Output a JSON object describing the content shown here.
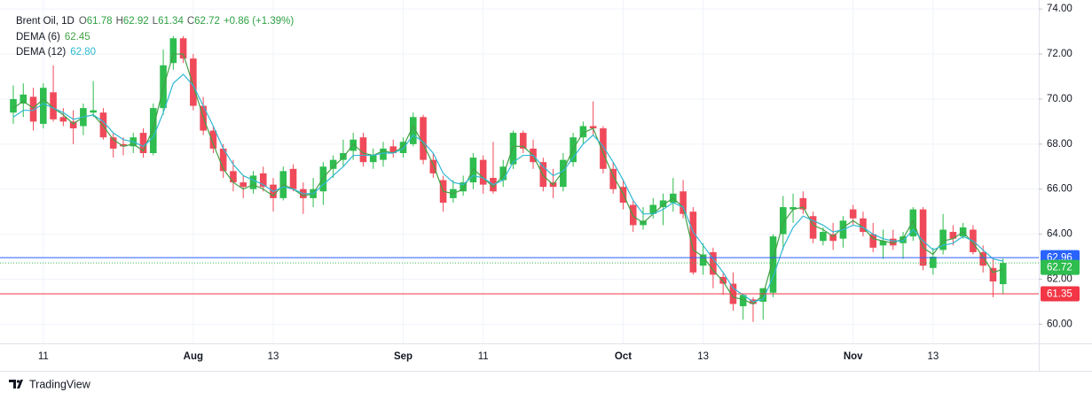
{
  "chart_data": {
    "type": "candlestick",
    "symbol": "Brent Oil, 1D",
    "ohlc_letters": [
      "O",
      "H",
      "L",
      "C"
    ],
    "change_label": "+0.86 (+1.39%)",
    "brand": "TradingView",
    "up_color": "#2ebd4e",
    "down_color": "#f04a5a",
    "grid": true,
    "categories": [
      null,
      null,
      null,
      "11",
      null,
      null,
      null,
      null,
      null,
      null,
      null,
      null,
      null,
      null,
      null,
      null,
      null,
      null,
      "Aug",
      null,
      null,
      null,
      null,
      null,
      null,
      null,
      "13",
      null,
      null,
      null,
      null,
      null,
      null,
      null,
      null,
      null,
      null,
      null,
      null,
      "Sep",
      null,
      null,
      null,
      null,
      null,
      null,
      null,
      "11",
      null,
      null,
      null,
      null,
      null,
      null,
      null,
      null,
      null,
      null,
      null,
      null,
      null,
      "Oct",
      null,
      null,
      null,
      null,
      null,
      null,
      null,
      "13",
      null,
      null,
      null,
      null,
      null,
      null,
      null,
      null,
      null,
      null,
      null,
      null,
      null,
      null,
      "Nov",
      null,
      null,
      null,
      null,
      null,
      null,
      null,
      "13",
      null,
      null,
      null,
      null,
      null,
      null,
      null
    ],
    "open": [
      69.4,
      69.8,
      70.1,
      68.9,
      70.3,
      69.2,
      69.0,
      68.8,
      69.4,
      69.4,
      68.3,
      68.0,
      67.9,
      68.5,
      67.6,
      69.6,
      71.6,
      72.7,
      71.8,
      69.7,
      68.6,
      67.8,
      66.8,
      66.3,
      66.0,
      66.7,
      66.2,
      65.6,
      66.9,
      66.0,
      65.6,
      65.9,
      66.9,
      67.3,
      67.7,
      68.3,
      67.2,
      67.3,
      67.9,
      67.6,
      68.0,
      69.2,
      67.3,
      66.4,
      65.6,
      65.9,
      66.3,
      67.3,
      66.5,
      66.4,
      67.1,
      68.5,
      67.8,
      67.2,
      66.3,
      66.1,
      67.2,
      68.3,
      68.8,
      68.7,
      66.9,
      66.1,
      65.3,
      64.4,
      64.9,
      65.2,
      65.4,
      65.9,
      65.0,
      62.6,
      63.2,
      62.1,
      61.8,
      60.8,
      61.1,
      61.0,
      61.4,
      64.0,
      65.1,
      65.6,
      64.8,
      63.7,
      64.0,
      63.8,
      65.1,
      64.7,
      64.0,
      63.5,
      63.8,
      63.6,
      63.9,
      65.1,
      62.5,
      63.3,
      64.1,
      63.9,
      64.2,
      63.2,
      62.5,
      61.78
    ],
    "high": [
      70.6,
      70.7,
      70.5,
      70.7,
      71.5,
      69.6,
      69.5,
      69.8,
      70.8,
      69.6,
      68.5,
      68.3,
      68.5,
      68.7,
      69.8,
      72.2,
      72.8,
      72.8,
      72.0,
      70.1,
      68.8,
      68.0,
      67.3,
      66.6,
      66.8,
      67.0,
      66.5,
      67.0,
      67.1,
      66.3,
      66.5,
      67.2,
      67.5,
      68.2,
      68.5,
      68.5,
      67.8,
      68.1,
      68.2,
      68.3,
      69.4,
      69.3,
      67.6,
      66.6,
      66.4,
      66.6,
      67.6,
      67.5,
      68.1,
      67.3,
      68.6,
      68.6,
      68.2,
      67.4,
      66.9,
      67.6,
      68.5,
      69.0,
      69.9,
      68.8,
      67.2,
      66.4,
      65.5,
      65.2,
      65.6,
      65.8,
      66.5,
      66.4,
      65.2,
      63.6,
      63.4,
      62.3,
      62.3,
      61.3,
      61.2,
      61.6,
      64.0,
      65.7,
      65.8,
      65.9,
      65.0,
      64.3,
      64.5,
      64.8,
      65.3,
      65.0,
      64.5,
      64.2,
      64.2,
      64.1,
      65.2,
      65.2,
      63.4,
      64.9,
      64.4,
      64.5,
      64.4,
      63.5,
      62.9,
      62.92
    ],
    "low": [
      68.9,
      69.2,
      68.6,
      68.7,
      69.0,
      68.8,
      68.0,
      68.4,
      69.2,
      68.2,
      67.4,
      67.5,
      67.6,
      67.4,
      67.5,
      69.3,
      71.3,
      71.6,
      69.5,
      68.4,
      67.6,
      66.5,
      65.9,
      65.6,
      65.8,
      65.9,
      65.0,
      65.5,
      65.9,
      64.9,
      65.2,
      65.3,
      66.5,
      67.0,
      67.3,
      67.0,
      66.9,
      67.0,
      67.4,
      67.4,
      67.9,
      67.1,
      66.5,
      65.0,
      65.4,
      65.7,
      66.0,
      65.8,
      65.8,
      66.1,
      66.9,
      67.6,
      66.9,
      65.9,
      65.6,
      65.9,
      67.0,
      68.0,
      68.4,
      66.7,
      65.8,
      65.1,
      64.1,
      64.2,
      64.7,
      64.4,
      65.0,
      64.7,
      62.2,
      62.2,
      61.6,
      61.3,
      60.6,
      60.2,
      60.1,
      60.2,
      61.2,
      63.3,
      64.5,
      64.9,
      63.6,
      63.5,
      63.3,
      63.4,
      64.4,
      63.9,
      63.2,
      62.9,
      63.3,
      62.9,
      63.7,
      62.4,
      62.2,
      63.1,
      63.5,
      63.8,
      63.1,
      62.3,
      61.2,
      61.34
    ],
    "close": [
      70.0,
      70.2,
      69.0,
      70.5,
      69.1,
      69.0,
      68.7,
      69.6,
      69.5,
      68.3,
      67.8,
      67.9,
      68.3,
      67.6,
      69.6,
      71.5,
      72.7,
      71.8,
      69.7,
      68.6,
      67.8,
      66.8,
      66.3,
      66.1,
      66.6,
      66.1,
      65.6,
      66.8,
      66.0,
      65.6,
      66.0,
      67.0,
      67.3,
      67.6,
      68.2,
      67.2,
      67.5,
      67.8,
      67.6,
      68.1,
      69.2,
      67.3,
      66.7,
      65.4,
      66.0,
      66.3,
      67.4,
      66.2,
      65.9,
      67.0,
      68.5,
      67.8,
      67.2,
      66.1,
      66.1,
      67.3,
      68.3,
      68.8,
      68.7,
      66.9,
      66.0,
      65.4,
      64.4,
      64.6,
      65.3,
      65.5,
      65.8,
      64.9,
      62.3,
      63.1,
      62.2,
      61.8,
      60.9,
      61.3,
      60.9,
      61.6,
      63.9,
      65.2,
      65.2,
      65.1,
      63.8,
      64.1,
      63.7,
      64.6,
      64.7,
      64.1,
      63.4,
      63.7,
      63.5,
      63.9,
      65.1,
      62.6,
      63.0,
      64.2,
      63.8,
      64.3,
      63.2,
      62.6,
      61.9,
      62.72
    ],
    "series": [
      {
        "name": "DEMA (6)",
        "color": "#43a047",
        "value_label": "62.45",
        "values": [
          69.6,
          69.9,
          69.6,
          70.0,
          69.6,
          69.3,
          68.9,
          69.2,
          69.3,
          68.8,
          68.2,
          67.9,
          68.0,
          67.7,
          68.7,
          70.5,
          72.0,
          72.0,
          70.6,
          69.2,
          68.0,
          66.9,
          66.3,
          66.0,
          66.2,
          66.0,
          65.7,
          66.2,
          66.0,
          65.7,
          65.8,
          66.5,
          67.0,
          67.4,
          68.0,
          67.6,
          67.5,
          67.7,
          67.6,
          67.9,
          68.8,
          68.0,
          67.1,
          65.9,
          65.8,
          66.0,
          66.9,
          66.5,
          66.1,
          66.6,
          67.9,
          67.9,
          67.5,
          66.6,
          66.2,
          66.8,
          67.8,
          68.5,
          68.7,
          67.6,
          66.6,
          65.8,
          64.8,
          64.5,
          64.9,
          65.3,
          65.6,
          65.2,
          63.3,
          63.0,
          62.4,
          61.9,
          61.2,
          61.1,
          60.9,
          61.3,
          62.9,
          64.5,
          65.1,
          65.2,
          64.4,
          64.2,
          63.9,
          64.3,
          64.6,
          64.3,
          63.8,
          63.7,
          63.6,
          63.8,
          64.6,
          63.4,
          63.1,
          63.7,
          63.8,
          64.1,
          63.6,
          63.0,
          62.3,
          62.45
        ]
      },
      {
        "name": "DEMA (12)",
        "color": "#2fb8d3",
        "value_label": "62.80",
        "values": [
          69.2,
          69.5,
          69.5,
          69.8,
          69.6,
          69.4,
          69.1,
          69.2,
          69.3,
          69.0,
          68.5,
          68.2,
          68.1,
          67.9,
          68.3,
          69.4,
          70.7,
          71.1,
          70.6,
          69.7,
          68.8,
          67.8,
          67.1,
          66.6,
          66.4,
          66.2,
          65.9,
          66.1,
          66.0,
          65.8,
          65.8,
          66.2,
          66.6,
          67.0,
          67.5,
          67.5,
          67.5,
          67.6,
          67.6,
          67.8,
          68.4,
          68.1,
          67.6,
          66.7,
          66.3,
          66.2,
          66.6,
          66.5,
          66.2,
          66.4,
          67.2,
          67.5,
          67.5,
          67.0,
          66.6,
          66.8,
          67.4,
          68.0,
          68.4,
          67.9,
          67.2,
          66.4,
          65.5,
          64.9,
          64.9,
          65.1,
          65.4,
          65.2,
          64.1,
          63.5,
          62.9,
          62.3,
          61.6,
          61.3,
          61.0,
          61.1,
          62.1,
          63.4,
          64.3,
          64.8,
          64.6,
          64.4,
          64.1,
          64.2,
          64.4,
          64.3,
          64.0,
          63.8,
          63.7,
          63.7,
          64.2,
          63.7,
          63.3,
          63.5,
          63.6,
          63.9,
          63.7,
          63.3,
          62.9,
          62.8
        ]
      }
    ],
    "price_lines": [
      {
        "value": 62.96,
        "color": "#2962ff",
        "style": "solid"
      },
      {
        "value": 61.35,
        "color": "#f23645",
        "style": "solid"
      }
    ],
    "close_line_color": "#2ebd4e",
    "ylim": [
      59.15,
      74.4
    ],
    "yticks": [
      {
        "value": 60,
        "label": "60.00"
      },
      {
        "value": 62,
        "label": "62.00"
      },
      {
        "value": 64,
        "label": "64.00"
      },
      {
        "value": 66,
        "label": "66.00"
      },
      {
        "value": 68,
        "label": "68.00"
      },
      {
        "value": 70,
        "label": "70.00"
      },
      {
        "value": 72,
        "label": "72.00"
      },
      {
        "value": 74,
        "label": "74.00"
      }
    ]
  }
}
